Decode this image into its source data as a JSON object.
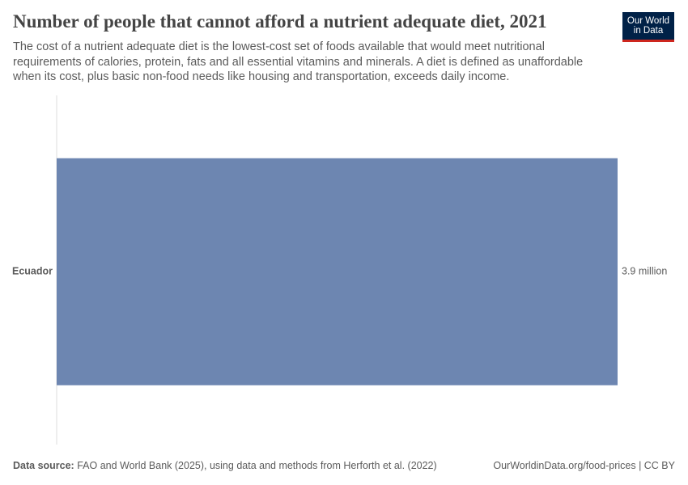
{
  "chart_data": {
    "type": "bar",
    "orientation": "horizontal",
    "title": "Number of people that cannot afford a nutrient adequate diet, 2021",
    "subtitle": "The cost of a nutrient adequate diet is the lowest-cost set of foods available that would meet nutritional requirements of calories, protein, fats and all essential vitamins and minerals. A diet is defined as unaffordable when its cost, plus basic non-food needs like housing and transportation, exceeds daily income.",
    "categories": [
      "Ecuador"
    ],
    "values": [
      3900000
    ],
    "value_labels": [
      "3.9 million"
    ],
    "color": "#6d86b1",
    "source_label": "Data source:",
    "source_text": "FAO and World Bank (2025), using data and methods from Herforth et al. (2022)",
    "url": "OurWorldinData.org/food-prices | CC BY"
  },
  "logo": {
    "line1": "Our World",
    "line2": "in Data"
  }
}
